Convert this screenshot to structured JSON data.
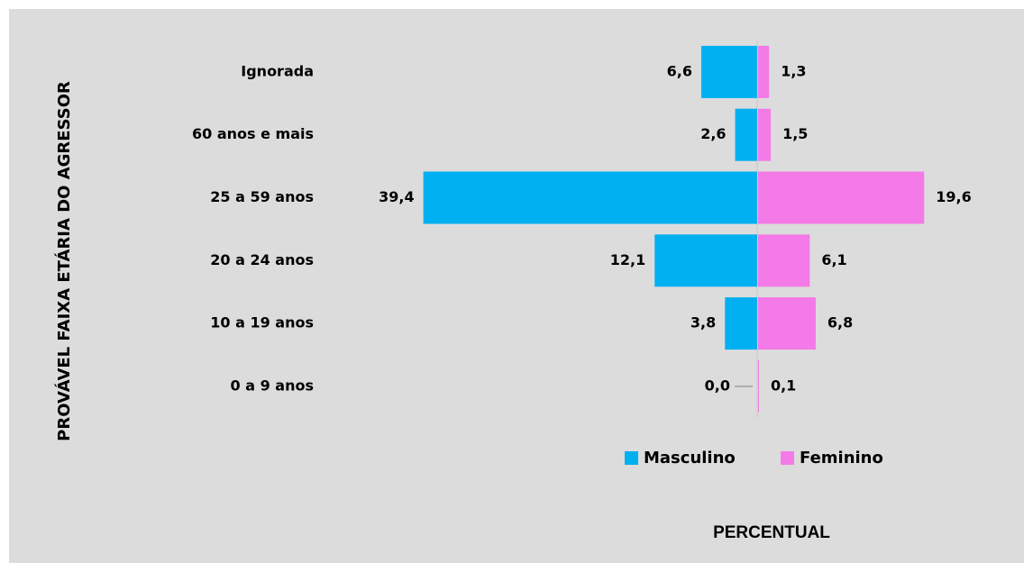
{
  "chart_data": {
    "type": "butterfly-bar",
    "y_label": "PROVÁVEL FAIXA ETÁRIA DO AGRESSOR",
    "x_label": "PERCENTUAL",
    "categories": [
      "Ignorada",
      "60 anos e mais",
      "25 a 59 anos",
      "20 a 24 anos",
      "10 a 19 anos",
      "0 a 9 anos"
    ],
    "series": [
      {
        "name": "Masculino",
        "color": "#00b0f0",
        "values": [
          6.6,
          2.6,
          39.4,
          12.1,
          3.8,
          0.0
        ],
        "value_labels": [
          "6,6",
          "2,6",
          "39,4",
          "12,1",
          "3,8",
          "0,0"
        ]
      },
      {
        "name": "Feminino",
        "color": "#f47ae8",
        "values": [
          1.3,
          1.5,
          19.6,
          6.1,
          6.8,
          0.1
        ],
        "value_labels": [
          "1,3",
          "1,5",
          "19,6",
          "6,1",
          "6,8",
          "0,1"
        ]
      }
    ],
    "grid": false
  }
}
